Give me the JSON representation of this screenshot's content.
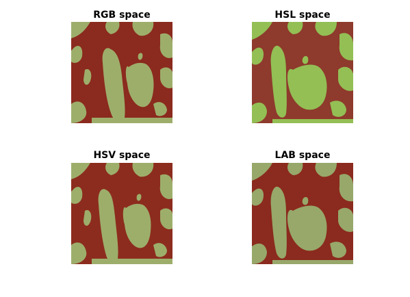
{
  "figure": {
    "panels": [
      {
        "title": "RGB space",
        "colors": {
          "dark": "#8B2A1E",
          "light": "#9DAE6B"
        }
      },
      {
        "title": "HSL space",
        "colors": {
          "dark": "#8E3A2C",
          "light": "#93BF55"
        }
      },
      {
        "title": "HSV space",
        "colors": {
          "dark": "#8C2C1E",
          "light": "#9DAE6B"
        }
      },
      {
        "title": "LAB space",
        "colors": {
          "dark": "#8B2A1E",
          "light": "#97A86A"
        }
      }
    ]
  }
}
